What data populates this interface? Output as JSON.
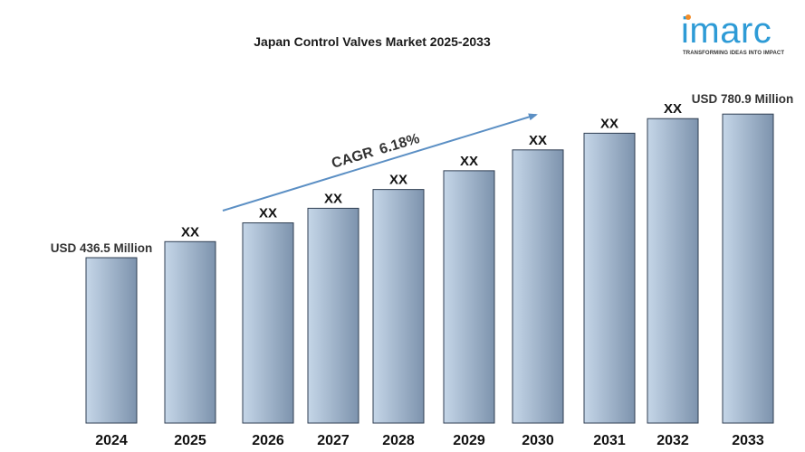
{
  "logo": {
    "word": "imarc",
    "tagline": "TRANSFORMING IDEAS INTO IMPACT"
  },
  "chart_data": {
    "type": "bar",
    "title": "Japan Control Valves Market 2025-2033",
    "categories": [
      "2024",
      "2025",
      "2026",
      "2027",
      "2028",
      "2029",
      "2030",
      "2031",
      "2032",
      "2033"
    ],
    "values": [
      436.5,
      475,
      520,
      555,
      600,
      645,
      695,
      735,
      770,
      780.9
    ],
    "data_labels": [
      "USD 436.5 Million",
      "XX",
      "XX",
      "XX",
      "XX",
      "XX",
      "XX",
      "XX",
      "XX",
      "USD 780.9 Million"
    ],
    "annotation": {
      "cagr_label": "CAGR",
      "cagr_value": "6.18%"
    },
    "xlabel": "",
    "ylabel": "",
    "ylim": [
      0,
      800
    ],
    "grid": false,
    "colors": {
      "bar_light": "#c5d6e8",
      "bar_dark": "#7d93ad",
      "bar_edge": "#2f3e52",
      "arrow": "#5b8fc4"
    }
  }
}
